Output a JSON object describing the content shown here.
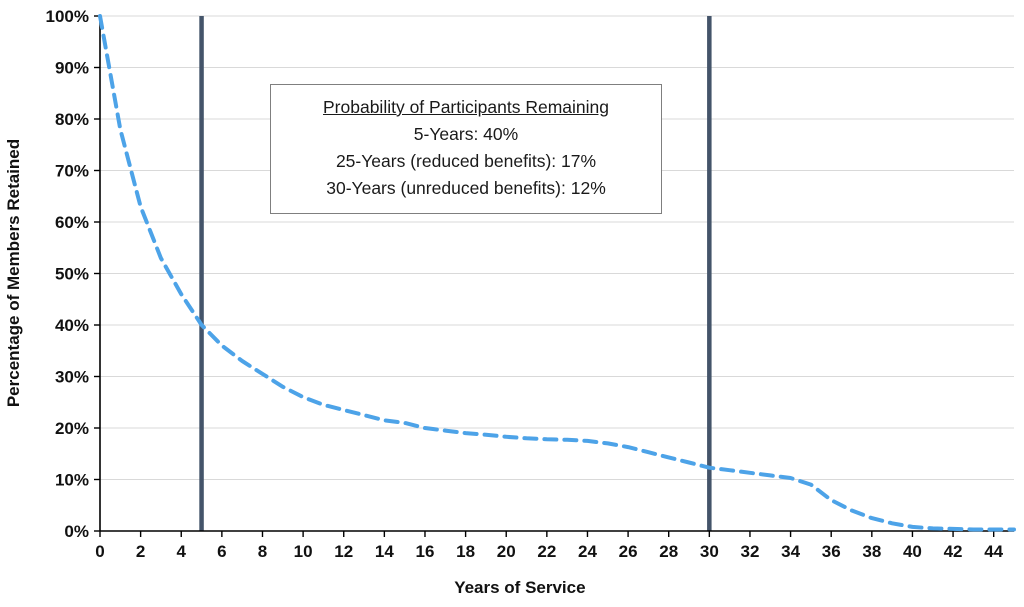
{
  "chart_data": {
    "type": "line",
    "title": "",
    "xlabel": "Years of Service",
    "ylabel": "Percentage of Members Retained",
    "xlim": [
      0,
      45
    ],
    "ylim": [
      0,
      100
    ],
    "x_ticks": [
      0,
      2,
      4,
      6,
      8,
      10,
      12,
      14,
      16,
      18,
      20,
      22,
      24,
      26,
      28,
      30,
      32,
      34,
      36,
      38,
      40,
      42,
      44
    ],
    "y_ticks": [
      0,
      10,
      20,
      30,
      40,
      50,
      60,
      70,
      80,
      90,
      100
    ],
    "y_tick_suffix": "%",
    "grid": "horizontal",
    "legend_position": "none",
    "series": [
      {
        "name": "percentage-of-members-retained",
        "style": "dashed",
        "x": [
          0,
          1,
          2,
          3,
          4,
          5,
          6,
          7,
          8,
          9,
          10,
          11,
          12,
          13,
          14,
          15,
          16,
          17,
          18,
          19,
          20,
          21,
          22,
          23,
          24,
          25,
          26,
          27,
          28,
          29,
          30,
          31,
          32,
          33,
          34,
          35,
          36,
          37,
          38,
          39,
          40,
          41,
          42,
          43,
          44,
          45
        ],
        "y": [
          100,
          78,
          63,
          53,
          46,
          40,
          36,
          33,
          30.5,
          28,
          26,
          24.5,
          23.5,
          22.5,
          21.5,
          21,
          20,
          19.5,
          19,
          18.7,
          18.3,
          18,
          17.8,
          17.7,
          17.5,
          17,
          16.3,
          15.3,
          14.3,
          13.3,
          12.3,
          11.8,
          11.3,
          10.8,
          10.3,
          9,
          6,
          4,
          2.5,
          1.5,
          0.8,
          0.5,
          0.4,
          0.3,
          0.3,
          0.3
        ]
      }
    ],
    "reference_lines_x": [
      5,
      30
    ],
    "colors": {
      "series_line": "#4DA3E8",
      "reference_line": "#44546A",
      "grid_line": "#d9d9d9",
      "axis_line": "#000000"
    },
    "annotation": {
      "title": "Probability of Participants Remaining",
      "lines": [
        "5-Years: 40%",
        "25-Years (reduced benefits): 17%",
        "30-Years (unreduced benefits): 12%"
      ]
    }
  }
}
